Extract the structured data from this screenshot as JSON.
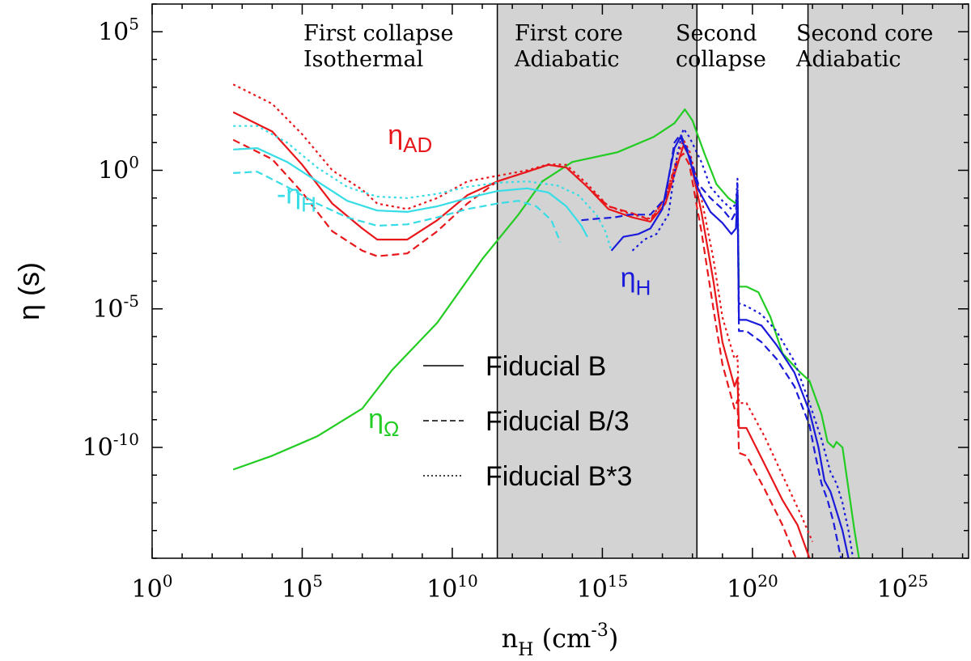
{
  "chart_data": {
    "type": "line",
    "x_scale": "log",
    "y_scale": "log",
    "xlim_log10": [
      0,
      27.2
    ],
    "ylim_log10": [
      -14,
      6
    ],
    "axis": {
      "xlabel": {
        "main": "n",
        "sub": "H",
        "unit_pre": " (cm",
        "unit_sup": "-3",
        "unit_post": ")"
      },
      "ylabel": "η (s)"
    },
    "x_ticks": [
      {
        "exp": 0,
        "label_base": "10",
        "label_exp": "0"
      },
      {
        "exp": 5,
        "label_base": "10",
        "label_exp": "5"
      },
      {
        "exp": 10,
        "label_base": "10",
        "label_exp": "10"
      },
      {
        "exp": 15,
        "label_base": "10",
        "label_exp": "15"
      },
      {
        "exp": 20,
        "label_base": "10",
        "label_exp": "20"
      },
      {
        "exp": 25,
        "label_base": "10",
        "label_exp": "25"
      }
    ],
    "y_ticks": [
      {
        "exp": 5,
        "label_base": "10",
        "label_exp": "5"
      },
      {
        "exp": 0,
        "label_base": "10",
        "label_exp": "0"
      },
      {
        "exp": -5,
        "label_base": "10",
        "label_exp": "-5"
      },
      {
        "exp": -10,
        "label_base": "10",
        "label_exp": "-10"
      }
    ],
    "phases": [
      {
        "name": "first-collapse",
        "line1": "First collapse",
        "line2": "Isothermal",
        "x_from": 0,
        "x_to": 11.5,
        "shaded": false
      },
      {
        "name": "first-core",
        "line1": "First core",
        "line2": "Adiabatic",
        "x_from": 11.5,
        "x_to": 18.15,
        "shaded": true
      },
      {
        "name": "second-collapse",
        "line1": "Second",
        "line2": "collapse",
        "x_from": 18.15,
        "x_to": 21.85,
        "shaded": false
      },
      {
        "name": "second-core",
        "line1": "Second core",
        "line2": "Adiabatic",
        "x_from": 21.85,
        "x_to": 27.2,
        "shaded": true
      }
    ],
    "curve_labels": [
      {
        "name": "eta-ad",
        "main": "η",
        "sub": "AD",
        "color": "#e8171b",
        "x": 7.85,
        "y": 0.95
      },
      {
        "name": "minus-eta-h",
        "main": "-η",
        "sub": "H",
        "color": "#36dde6",
        "x": 4.15,
        "y": -1.2
      },
      {
        "name": "eta-h",
        "main": "η",
        "sub": "H",
        "color": "#1a1adb",
        "x": 15.6,
        "y": -4.2
      },
      {
        "name": "eta-omega",
        "main": "η",
        "sub": "Ω",
        "color": "#22cc22",
        "x": 7.2,
        "y": -9.3
      }
    ],
    "legend": [
      {
        "label": "Fiducial B",
        "style": "solid"
      },
      {
        "label": "Fiducial B/3",
        "style": "dashed"
      },
      {
        "label": "Fiducial B*3",
        "style": "dotted"
      }
    ],
    "series": [
      {
        "name": "eta-omega",
        "color": "#22cc22",
        "style": "solid",
        "points": [
          [
            2.7,
            -10.8
          ],
          [
            4,
            -10.3
          ],
          [
            5.5,
            -9.6
          ],
          [
            7,
            -8.6
          ],
          [
            8,
            -7.2
          ],
          [
            9.5,
            -5.5
          ],
          [
            11,
            -3.2
          ],
          [
            12.2,
            -1.6
          ],
          [
            13,
            -0.4
          ],
          [
            14,
            0.3
          ],
          [
            15.5,
            0.65
          ],
          [
            16.7,
            1.2
          ],
          [
            17.4,
            1.7
          ],
          [
            17.75,
            2.2
          ],
          [
            18,
            1.8
          ],
          [
            18.4,
            0.6
          ],
          [
            18.8,
            -0.5
          ],
          [
            19.2,
            -1.0
          ],
          [
            19.45,
            -1.2
          ],
          [
            19.5,
            -0.75
          ],
          [
            19.55,
            -4.2
          ],
          [
            19.8,
            -4.2
          ],
          [
            20.2,
            -4.4
          ],
          [
            20.6,
            -5.3
          ],
          [
            21,
            -6.6
          ],
          [
            21.5,
            -7.2
          ],
          [
            21.9,
            -7.6
          ],
          [
            22.3,
            -8.8
          ],
          [
            22.5,
            -9.8
          ],
          [
            22.7,
            -10.0
          ],
          [
            22.8,
            -9.8
          ],
          [
            23,
            -10.0
          ],
          [
            23.2,
            -11.5
          ],
          [
            23.4,
            -13
          ],
          [
            23.55,
            -14
          ]
        ]
      },
      {
        "name": "eta-ad-fid",
        "color": "#e8171b",
        "style": "solid",
        "points": [
          [
            2.7,
            2.1
          ],
          [
            4,
            1.4
          ],
          [
            5,
            0.2
          ],
          [
            6,
            -1.2
          ],
          [
            7,
            -2.1
          ],
          [
            7.5,
            -2.5
          ],
          [
            8.5,
            -2.5
          ],
          [
            9.5,
            -1.8
          ],
          [
            10.5,
            -0.9
          ],
          [
            11.5,
            -0.4
          ],
          [
            12.5,
            -0.05
          ],
          [
            13.2,
            0.2
          ],
          [
            13.8,
            0.1
          ],
          [
            14.5,
            -0.6
          ],
          [
            15.2,
            -1.4
          ],
          [
            16,
            -1.7
          ],
          [
            16.6,
            -1.85
          ],
          [
            17.1,
            -1.2
          ],
          [
            17.5,
            0.2
          ],
          [
            17.7,
            0.9
          ],
          [
            17.9,
            0.5
          ],
          [
            18.3,
            -1.5
          ],
          [
            18.7,
            -4.0
          ],
          [
            19.0,
            -6.2
          ],
          [
            19.4,
            -7.8
          ],
          [
            19.5,
            -7.5
          ],
          [
            19.55,
            -9.3
          ],
          [
            19.8,
            -9.3
          ],
          [
            20.4,
            -10.6
          ],
          [
            21,
            -11.9
          ],
          [
            21.5,
            -12.8
          ],
          [
            21.9,
            -14
          ]
        ]
      },
      {
        "name": "eta-ad-b3",
        "color": "#e8171b",
        "style": "dashed",
        "points": [
          [
            2.7,
            1.1
          ],
          [
            4,
            0.4
          ],
          [
            5,
            -0.8
          ],
          [
            6,
            -2.2
          ],
          [
            7,
            -2.9
          ],
          [
            7.5,
            -3.1
          ],
          [
            8.5,
            -3.0
          ],
          [
            9.5,
            -2.2
          ],
          [
            10.5,
            -1.2
          ],
          [
            11.5,
            -0.4
          ],
          [
            12.5,
            -0.05
          ],
          [
            13.2,
            0.2
          ],
          [
            13.8,
            0.1
          ],
          [
            14.5,
            -0.6
          ],
          [
            15.2,
            -1.3
          ],
          [
            16,
            -1.55
          ],
          [
            16.6,
            -1.8
          ],
          [
            17.1,
            -1.0
          ],
          [
            17.5,
            0.4
          ],
          [
            17.7,
            0.6
          ],
          [
            17.9,
            0.2
          ],
          [
            18.3,
            -2.2
          ],
          [
            18.7,
            -5.0
          ],
          [
            19.0,
            -7.0
          ],
          [
            19.4,
            -8.6
          ],
          [
            19.5,
            -8.3
          ],
          [
            19.55,
            -10.2
          ],
          [
            19.8,
            -10.3
          ],
          [
            20.4,
            -11.5
          ],
          [
            21,
            -12.8
          ],
          [
            21.45,
            -14
          ]
        ]
      },
      {
        "name": "eta-ad-bx3",
        "color": "#e8171b",
        "style": "dotted",
        "points": [
          [
            2.7,
            3.1
          ],
          [
            4,
            2.4
          ],
          [
            5,
            1.3
          ],
          [
            6,
            0.0
          ],
          [
            7,
            -0.7
          ],
          [
            7.5,
            -1.2
          ],
          [
            8.5,
            -1.4
          ],
          [
            9.5,
            -1.0
          ],
          [
            10.5,
            -0.4
          ],
          [
            11.5,
            -0.2
          ],
          [
            12.5,
            0.0
          ],
          [
            13.2,
            0.22
          ],
          [
            13.8,
            0.2
          ],
          [
            14.5,
            -0.5
          ],
          [
            15.2,
            -1.3
          ],
          [
            16,
            -1.6
          ],
          [
            16.6,
            -1.75
          ],
          [
            17.1,
            -1.0
          ],
          [
            17.5,
            0.5
          ],
          [
            17.7,
            1.1
          ],
          [
            17.9,
            0.7
          ],
          [
            18.3,
            -1.0
          ],
          [
            18.7,
            -3.2
          ],
          [
            19.0,
            -5.3
          ],
          [
            19.4,
            -6.8
          ],
          [
            19.5,
            -6.7
          ],
          [
            19.55,
            -8.4
          ],
          [
            19.8,
            -8.4
          ],
          [
            20.4,
            -9.6
          ],
          [
            21,
            -11.0
          ],
          [
            21.6,
            -12.4
          ],
          [
            22,
            -13.4
          ]
        ]
      },
      {
        "name": "minus-eta-h-fid",
        "color": "#36dde6",
        "style": "solid",
        "points": [
          [
            2.7,
            0.75
          ],
          [
            3.5,
            0.8
          ],
          [
            4.5,
            0.3
          ],
          [
            5.5,
            -0.4
          ],
          [
            6.5,
            -1.1
          ],
          [
            7.5,
            -1.45
          ],
          [
            8.5,
            -1.5
          ],
          [
            9.5,
            -1.3
          ],
          [
            10.5,
            -1.0
          ],
          [
            11.5,
            -0.75
          ],
          [
            12.5,
            -0.65
          ],
          [
            13.2,
            -0.8
          ],
          [
            13.8,
            -1.3
          ],
          [
            14.3,
            -2.0
          ],
          [
            14.5,
            -2.4
          ]
        ]
      },
      {
        "name": "minus-eta-h-b3",
        "color": "#36dde6",
        "style": "dashed",
        "points": [
          [
            2.7,
            -0.1
          ],
          [
            3.5,
            -0.05
          ],
          [
            4.5,
            -0.6
          ],
          [
            5.5,
            -1.2
          ],
          [
            6.5,
            -1.7
          ],
          [
            7.5,
            -2.0
          ],
          [
            8.5,
            -1.95
          ],
          [
            9.5,
            -1.7
          ],
          [
            10.5,
            -1.4
          ],
          [
            11.5,
            -1.2
          ],
          [
            12.2,
            -1.1
          ],
          [
            12.8,
            -1.3
          ],
          [
            13.3,
            -1.8
          ],
          [
            13.6,
            -2.6
          ]
        ]
      },
      {
        "name": "minus-eta-h-bx3",
        "color": "#36dde6",
        "style": "dotted",
        "points": [
          [
            2.7,
            1.6
          ],
          [
            3.5,
            1.6
          ],
          [
            4.5,
            1.0
          ],
          [
            5.5,
            0.1
          ],
          [
            6.5,
            -0.6
          ],
          [
            7.5,
            -0.95
          ],
          [
            8.5,
            -1.0
          ],
          [
            9.5,
            -0.85
          ],
          [
            10.5,
            -0.6
          ],
          [
            11.5,
            -0.45
          ],
          [
            12.5,
            -0.4
          ],
          [
            13.5,
            -0.55
          ],
          [
            14.2,
            -0.9
          ],
          [
            14.8,
            -1.6
          ],
          [
            15.1,
            -2.2
          ],
          [
            15.3,
            -2.9
          ]
        ]
      },
      {
        "name": "eta-h-fid",
        "color": "#1a1adb",
        "style": "solid",
        "points": [
          [
            15.3,
            -2.9
          ],
          [
            15.7,
            -2.4
          ],
          [
            16.2,
            -2.3
          ],
          [
            16.6,
            -2.1
          ],
          [
            17,
            -1.4
          ],
          [
            17.4,
            0.8
          ],
          [
            17.6,
            1.2
          ],
          [
            17.85,
            0.6
          ],
          [
            18.2,
            -0.7
          ],
          [
            18.6,
            -1.5
          ],
          [
            19.0,
            -1.9
          ],
          [
            19.3,
            -2.3
          ],
          [
            19.45,
            -2.1
          ],
          [
            19.5,
            -0.8
          ],
          [
            19.55,
            -5.4
          ],
          [
            19.8,
            -5.4
          ],
          [
            20.3,
            -5.6
          ],
          [
            20.8,
            -6.3
          ],
          [
            21.4,
            -7.3
          ],
          [
            21.9,
            -8.7
          ],
          [
            22.2,
            -10.0
          ],
          [
            22.4,
            -11.2
          ],
          [
            22.6,
            -11.6
          ],
          [
            22.8,
            -12.3
          ],
          [
            23.0,
            -13
          ],
          [
            23.2,
            -14
          ]
        ]
      },
      {
        "name": "eta-h-b3",
        "color": "#1a1adb",
        "style": "dashed",
        "points": [
          [
            14.3,
            -1.8
          ],
          [
            14.8,
            -1.75
          ],
          [
            15.4,
            -1.7
          ],
          [
            15.9,
            -1.6
          ],
          [
            16.6,
            -1.6
          ],
          [
            17.1,
            -1.0
          ],
          [
            17.4,
            1.0
          ],
          [
            17.6,
            1.3
          ],
          [
            17.85,
            0.7
          ],
          [
            18.2,
            -0.5
          ],
          [
            18.6,
            -1.0
          ],
          [
            19.0,
            -1.4
          ],
          [
            19.3,
            -1.8
          ],
          [
            19.45,
            -1.5
          ],
          [
            19.5,
            -0.5
          ],
          [
            19.55,
            -5.8
          ],
          [
            19.8,
            -5.8
          ],
          [
            20.3,
            -6.2
          ],
          [
            20.8,
            -6.8
          ],
          [
            21.4,
            -7.8
          ],
          [
            21.9,
            -9.2
          ],
          [
            22.1,
            -10.3
          ],
          [
            22.3,
            -11.3
          ],
          [
            22.5,
            -11.9
          ],
          [
            22.7,
            -12.7
          ],
          [
            22.95,
            -14
          ]
        ]
      },
      {
        "name": "eta-h-bx3",
        "color": "#1a1adb",
        "style": "dotted",
        "points": [
          [
            16.0,
            -2.9
          ],
          [
            16.4,
            -2.5
          ],
          [
            16.8,
            -2.3
          ],
          [
            17.2,
            -1.6
          ],
          [
            17.5,
            0.6
          ],
          [
            17.7,
            1.5
          ],
          [
            17.9,
            1.2
          ],
          [
            18.3,
            0.3
          ],
          [
            18.6,
            -0.6
          ],
          [
            19.0,
            -1.1
          ],
          [
            19.3,
            -1.4
          ],
          [
            19.45,
            -1.2
          ],
          [
            19.5,
            -0.3
          ],
          [
            19.55,
            -4.8
          ],
          [
            19.8,
            -4.9
          ],
          [
            20.3,
            -5.2
          ],
          [
            20.8,
            -5.8
          ],
          [
            21.4,
            -6.9
          ],
          [
            21.9,
            -8.4
          ],
          [
            22.3,
            -9.7
          ],
          [
            22.6,
            -10.9
          ],
          [
            22.8,
            -11.3
          ],
          [
            23.0,
            -12.0
          ],
          [
            23.2,
            -13
          ],
          [
            23.35,
            -14
          ]
        ]
      }
    ]
  }
}
